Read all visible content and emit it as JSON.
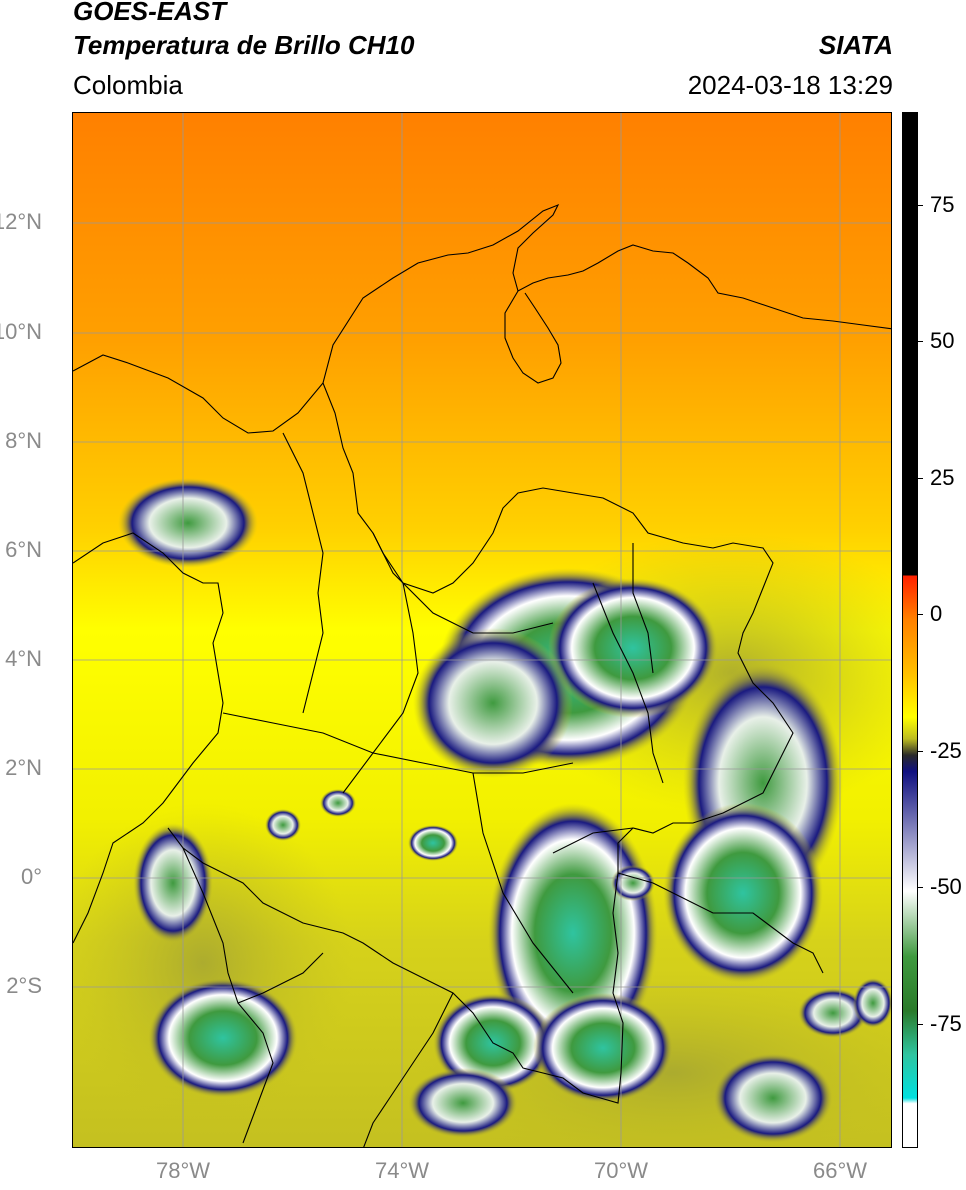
{
  "header": {
    "satellite": "GOES-EAST",
    "product": "Temperatura de Brillo CH10",
    "region": "Colombia",
    "brand": "SIATA",
    "datetime": "2024-03-18 13:29"
  },
  "map": {
    "lat_labels": [
      "12°N",
      "10°N",
      "8°N",
      "6°N",
      "4°N",
      "2°N",
      "0°",
      "2°S"
    ],
    "lon_labels": [
      "78°W",
      "74°W",
      "70°W",
      "66°W"
    ],
    "extent": {
      "lon_min": -80,
      "lon_max": -65,
      "lat_min": -5.2,
      "lat_max": 14
    },
    "gridlines": true,
    "colors": {
      "warm_orange": "#ff8c00",
      "yellow": "#ffff00",
      "olive": "#bcbc20",
      "navy": "#1a1a80",
      "white": "#ffffff",
      "green": "#3f9a3f",
      "teal": "#2fc4a0",
      "border": "#000000",
      "grid": "#999999"
    }
  },
  "colorbar": {
    "ticks": [
      "75",
      "50",
      "25",
      "0",
      "-25",
      "-50",
      "-75"
    ],
    "tick_values": [
      75,
      50,
      25,
      0,
      -25,
      -50,
      -75
    ],
    "range": [
      -97,
      93
    ]
  }
}
